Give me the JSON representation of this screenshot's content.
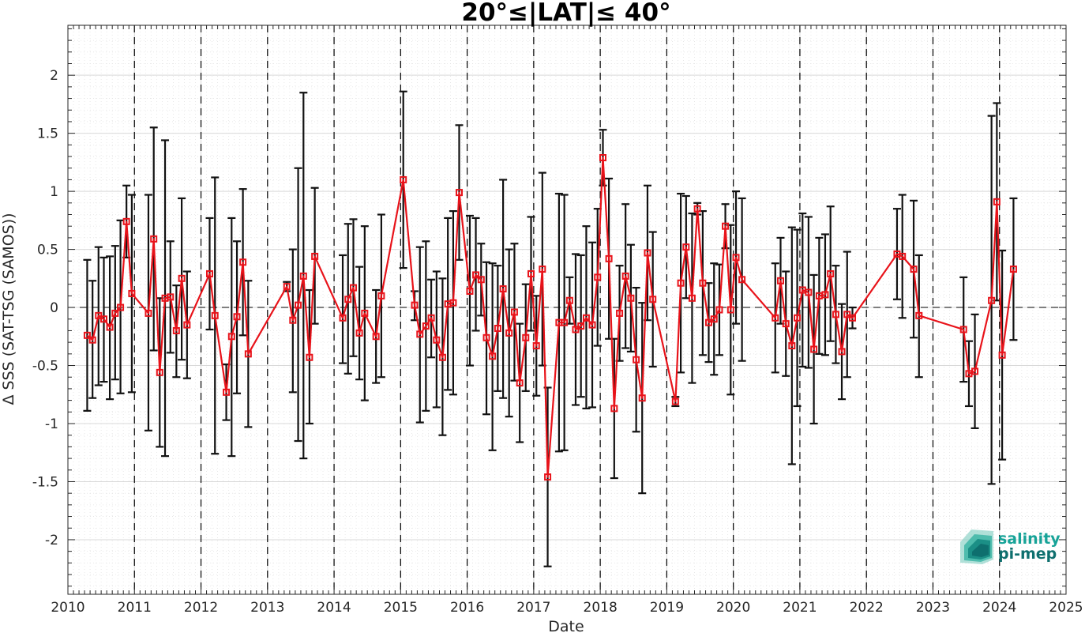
{
  "chart_data": {
    "type": "line",
    "title": "20°≤|LAT|≤ 40°",
    "xlabel": "Date",
    "ylabel": "Δ SSS (SAT-TSG (SAMOS))",
    "xlim": [
      2010.0,
      2025.0
    ],
    "ylim": [
      -2.47,
      2.43
    ],
    "x_ticks": [
      2010,
      2011,
      2012,
      2013,
      2014,
      2015,
      2016,
      2017,
      2018,
      2019,
      2020,
      2021,
      2022,
      2023,
      2024,
      2025
    ],
    "x_tick_labels": [
      "2010",
      "2011",
      "2012",
      "2013",
      "2014",
      "2015",
      "2016",
      "2017",
      "2018",
      "2019",
      "2020",
      "2021",
      "2022",
      "2023",
      "2024",
      "2025"
    ],
    "y_ticks": [
      2,
      1.5,
      1,
      0.5,
      0,
      -0.5,
      -1,
      -1.5,
      -2
    ],
    "y_tick_labels": [
      "2",
      "1.5",
      "1",
      "0.5",
      "0",
      "-0.5",
      "-1",
      "-1.5",
      "-2"
    ],
    "grid": true,
    "year_separators": [
      2011,
      2012,
      2013,
      2014,
      2015,
      2016,
      2017,
      2018,
      2019,
      2020,
      2021,
      2022,
      2023,
      2024
    ],
    "zero_line": true,
    "colors": {
      "line": "#e8131a",
      "errorbar": "#111111",
      "grid": "#d9d9d9",
      "axis": "#262626"
    },
    "series": [
      {
        "points": [
          [
            2010.29,
            -0.24,
            0.41,
            -0.89
          ],
          [
            2010.37,
            -0.28,
            0.23,
            -0.78
          ],
          [
            2010.46,
            -0.07,
            0.52,
            -0.67
          ],
          [
            2010.54,
            -0.1,
            0.43,
            -0.64
          ],
          [
            2010.63,
            -0.17,
            0.44,
            -0.79
          ],
          [
            2010.71,
            -0.05,
            0.53,
            -0.62
          ],
          [
            2010.79,
            0.0,
            0.75,
            -0.74
          ],
          [
            2010.88,
            0.74,
            1.05,
            0.43
          ],
          [
            2010.96,
            0.12,
            0.97,
            -0.73
          ],
          [
            2011.21,
            -0.05,
            0.97,
            -1.06
          ],
          [
            2011.29,
            0.59,
            1.55,
            -0.37
          ],
          [
            2011.38,
            -0.56,
            0.08,
            -1.2
          ],
          [
            2011.46,
            0.08,
            1.44,
            -1.28
          ],
          [
            2011.54,
            0.09,
            0.57,
            -0.39
          ],
          [
            2011.63,
            -0.2,
            0.19,
            -0.6
          ],
          [
            2011.71,
            0.25,
            0.94,
            -0.45
          ],
          [
            2011.79,
            -0.15,
            0.31,
            -0.61
          ],
          [
            2012.13,
            0.29,
            0.77,
            -0.19
          ],
          [
            2012.21,
            -0.07,
            1.12,
            -1.26
          ],
          [
            2012.38,
            -0.73,
            -0.49,
            -0.97
          ],
          [
            2012.46,
            -0.25,
            0.77,
            -1.28
          ],
          [
            2012.54,
            -0.08,
            0.57,
            -0.74
          ],
          [
            2012.63,
            0.39,
            1.02,
            -0.24
          ],
          [
            2012.71,
            -0.4,
            0.23,
            -1.03
          ],
          [
            2013.29,
            0.18,
            0.22,
            0.14
          ],
          [
            2013.38,
            -0.11,
            0.5,
            -0.73
          ],
          [
            2013.46,
            0.02,
            1.2,
            -1.15
          ],
          [
            2013.54,
            0.27,
            1.85,
            -1.3
          ],
          [
            2013.63,
            -0.43,
            0.15,
            -1.0
          ],
          [
            2013.71,
            0.44,
            1.03,
            -0.14
          ],
          [
            2014.13,
            -0.09,
            0.45,
            -0.48
          ],
          [
            2014.21,
            0.07,
            0.72,
            -0.57
          ],
          [
            2014.29,
            0.17,
            0.76,
            -0.42
          ],
          [
            2014.38,
            -0.22,
            0.35,
            -0.62
          ],
          [
            2014.46,
            -0.05,
            0.7,
            -0.8
          ],
          [
            2014.63,
            -0.25,
            0.15,
            -0.65
          ],
          [
            2014.71,
            0.1,
            0.8,
            -0.6
          ],
          [
            2015.04,
            1.1,
            1.86,
            0.34
          ],
          [
            2015.21,
            0.02,
            0.14,
            -0.11
          ],
          [
            2015.29,
            -0.23,
            0.52,
            -0.99
          ],
          [
            2015.38,
            -0.16,
            0.57,
            -0.89
          ],
          [
            2015.46,
            -0.09,
            0.24,
            -0.43
          ],
          [
            2015.54,
            -0.28,
            0.31,
            -0.86
          ],
          [
            2015.63,
            -0.43,
            0.25,
            -1.1
          ],
          [
            2015.71,
            0.03,
            0.77,
            -0.71
          ],
          [
            2015.79,
            0.04,
            0.83,
            -0.75
          ],
          [
            2015.88,
            0.99,
            1.57,
            0.41
          ],
          [
            2016.04,
            0.14,
            0.79,
            -0.5
          ],
          [
            2016.13,
            0.28,
            0.77,
            -0.2
          ],
          [
            2016.21,
            0.24,
            0.55,
            -0.07
          ],
          [
            2016.29,
            -0.26,
            0.39,
            -0.92
          ],
          [
            2016.38,
            -0.42,
            0.38,
            -1.23
          ],
          [
            2016.46,
            -0.18,
            0.36,
            -0.72
          ],
          [
            2016.54,
            0.16,
            1.1,
            -0.78
          ],
          [
            2016.63,
            -0.22,
            0.5,
            -0.94
          ],
          [
            2016.71,
            -0.04,
            0.55,
            -0.63
          ],
          [
            2016.79,
            -0.65,
            -0.14,
            -1.16
          ],
          [
            2016.88,
            -0.26,
            0.2,
            -0.72
          ],
          [
            2016.96,
            0.29,
            0.78,
            -0.2
          ],
          [
            2017.04,
            -0.33,
            0.1,
            -0.76
          ],
          [
            2017.13,
            0.33,
            1.16,
            -0.5
          ],
          [
            2017.21,
            -1.46,
            -0.69,
            -2.23
          ],
          [
            2017.38,
            -0.13,
            0.98,
            -1.24
          ],
          [
            2017.46,
            -0.13,
            0.97,
            -1.23
          ],
          [
            2017.54,
            0.06,
            0.26,
            -0.14
          ],
          [
            2017.63,
            -0.19,
            0.46,
            -0.84
          ],
          [
            2017.71,
            -0.16,
            0.45,
            -0.77
          ],
          [
            2017.79,
            -0.09,
            0.7,
            -0.87
          ],
          [
            2017.88,
            -0.15,
            0.56,
            -0.86
          ],
          [
            2017.96,
            0.26,
            0.85,
            -0.33
          ],
          [
            2018.04,
            1.29,
            1.53,
            1.05
          ],
          [
            2018.13,
            0.42,
            1.11,
            -0.27
          ],
          [
            2018.21,
            -0.87,
            -0.27,
            -1.47
          ],
          [
            2018.29,
            -0.05,
            0.36,
            -0.46
          ],
          [
            2018.38,
            0.27,
            0.89,
            -0.35
          ],
          [
            2018.46,
            0.08,
            0.54,
            -0.38
          ],
          [
            2018.54,
            -0.45,
            0.17,
            -1.07
          ],
          [
            2018.63,
            -0.78,
            0.04,
            -1.6
          ],
          [
            2018.71,
            0.47,
            1.05,
            -0.11
          ],
          [
            2018.79,
            0.07,
            0.65,
            -0.51
          ],
          [
            2019.13,
            -0.81,
            -0.77,
            -0.85
          ],
          [
            2019.21,
            0.21,
            0.98,
            -0.56
          ],
          [
            2019.29,
            0.52,
            0.96,
            0.08
          ],
          [
            2019.38,
            0.08,
            0.81,
            -0.65
          ],
          [
            2019.46,
            0.85,
            0.9,
            0.8
          ],
          [
            2019.54,
            0.21,
            0.83,
            -0.41
          ],
          [
            2019.63,
            -0.13,
            0.21,
            -0.47
          ],
          [
            2019.71,
            -0.1,
            0.38,
            -0.58
          ],
          [
            2019.79,
            -0.02,
            0.37,
            -0.41
          ],
          [
            2019.88,
            0.7,
            0.89,
            0.51
          ],
          [
            2019.96,
            -0.02,
            0.71,
            -0.75
          ],
          [
            2020.04,
            0.43,
            1.0,
            -0.14
          ],
          [
            2020.13,
            0.24,
            0.94,
            -0.46
          ],
          [
            2020.63,
            -0.09,
            0.38,
            -0.56
          ],
          [
            2020.71,
            0.23,
            0.6,
            -0.14
          ],
          [
            2020.79,
            -0.14,
            0.31,
            -0.59
          ],
          [
            2020.88,
            -0.33,
            0.69,
            -1.35
          ],
          [
            2020.96,
            -0.09,
            0.67,
            -0.85
          ],
          [
            2021.04,
            0.15,
            0.81,
            -0.51
          ],
          [
            2021.13,
            0.13,
            0.78,
            -0.52
          ],
          [
            2021.21,
            -0.36,
            0.28,
            -1.0
          ],
          [
            2021.29,
            0.1,
            0.6,
            -0.4
          ],
          [
            2021.38,
            0.11,
            0.63,
            -0.41
          ],
          [
            2021.46,
            0.29,
            0.87,
            -0.29
          ],
          [
            2021.54,
            -0.06,
            0.36,
            -0.48
          ],
          [
            2021.63,
            -0.38,
            0.03,
            -0.79
          ],
          [
            2021.71,
            -0.06,
            0.48,
            -0.6
          ],
          [
            2021.79,
            -0.09,
            0.0,
            -0.18
          ],
          [
            2022.46,
            0.46,
            0.85,
            0.07
          ],
          [
            2022.54,
            0.44,
            0.97,
            -0.09
          ],
          [
            2022.71,
            0.33,
            0.92,
            -0.26
          ],
          [
            2022.79,
            -0.07,
            0.45,
            -0.6
          ],
          [
            2023.46,
            -0.19,
            0.26,
            -0.64
          ],
          [
            2023.54,
            -0.57,
            -0.29,
            -0.85
          ],
          [
            2023.63,
            -0.55,
            -0.06,
            -1.04
          ],
          [
            2023.88,
            0.06,
            1.65,
            -1.52
          ],
          [
            2023.96,
            0.91,
            1.76,
            0.06
          ],
          [
            2024.04,
            -0.41,
            0.49,
            -1.31
          ],
          [
            2024.21,
            0.33,
            0.94,
            -0.28
          ]
        ],
        "point_format": [
          "x",
          "y",
          "y_upper",
          "y_lower"
        ]
      }
    ]
  },
  "logo": {
    "line1": "salinity",
    "line2": "pi-mep",
    "color": "#17a398",
    "dark": "#0e6f6e"
  }
}
